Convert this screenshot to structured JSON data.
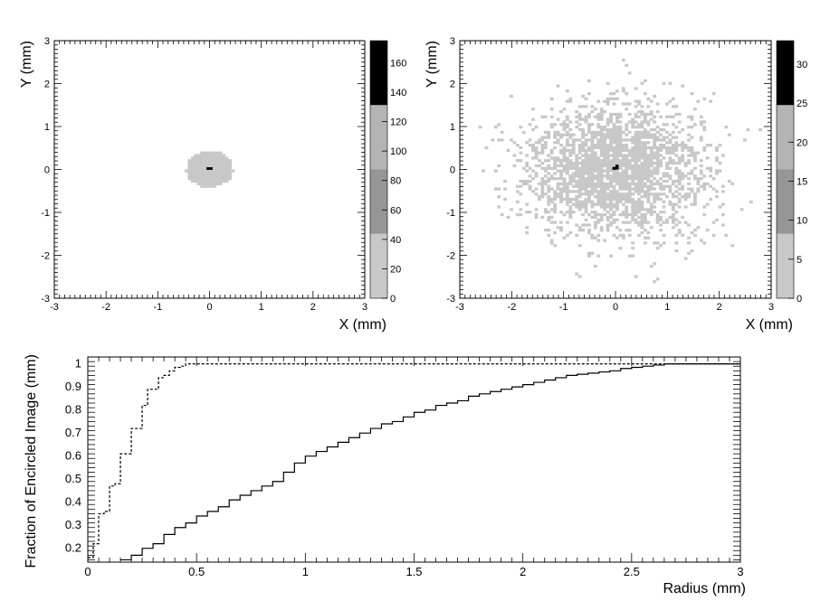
{
  "chart_data": [
    {
      "type": "heatmap",
      "xlabel": "X (mm)",
      "ylabel": "Y (mm)",
      "xlim": [
        -3,
        3
      ],
      "ylim": [
        -3,
        3
      ],
      "x_ticks": [
        "-3",
        "-2",
        "-1",
        "0",
        "1",
        "2",
        "3"
      ],
      "y_ticks": [
        "-3",
        "-2",
        "-1",
        "0",
        "1",
        "2",
        "3"
      ],
      "colorbar": {
        "zlim": [
          0,
          175
        ],
        "ticks": [
          "0",
          "20",
          "40",
          "60",
          "80",
          "100",
          "120",
          "140",
          "160"
        ],
        "levels": [
          {
            "from": 0,
            "to": 43.75,
            "color": "#c8c8c8"
          },
          {
            "from": 43.75,
            "to": 87.5,
            "color": "#969696"
          },
          {
            "from": 87.5,
            "to": 131.25,
            "color": "#b4b4b4"
          },
          {
            "from": 131.25,
            "to": 175,
            "color": "#000000"
          }
        ]
      },
      "distribution": {
        "shape": "compact disc",
        "radius_mm": 0.45,
        "peak_at": [
          0,
          0
        ],
        "peak_value": 175
      }
    },
    {
      "type": "heatmap",
      "xlabel": "X (mm)",
      "ylabel": "Y (mm)",
      "xlim": [
        -3,
        3
      ],
      "ylim": [
        -3,
        3
      ],
      "x_ticks": [
        "-3",
        "-2",
        "-1",
        "0",
        "1",
        "2",
        "3"
      ],
      "y_ticks": [
        "-3",
        "-2",
        "-1",
        "0",
        "1",
        "2",
        "3"
      ],
      "colorbar": {
        "zlim": [
          0,
          33
        ],
        "ticks": [
          "0",
          "5",
          "10",
          "15",
          "20",
          "25",
          "30"
        ],
        "levels": [
          {
            "from": 0,
            "to": 8.25,
            "color": "#c8c8c8"
          },
          {
            "from": 8.25,
            "to": 16.5,
            "color": "#969696"
          },
          {
            "from": 16.5,
            "to": 24.75,
            "color": "#b4b4b4"
          },
          {
            "from": 24.75,
            "to": 33,
            "color": "#000000"
          }
        ]
      },
      "distribution": {
        "shape": "diffuse scatter",
        "radius_mm": 3.0,
        "peak_at": [
          0,
          0
        ],
        "peak_value": 33
      }
    },
    {
      "type": "line",
      "xlabel": "Radius (mm)",
      "ylabel": "Fraction of Encircled Image (mm)",
      "xlim": [
        0,
        3
      ],
      "ylim": [
        0.14,
        1.03
      ],
      "x_ticks": [
        "0",
        "0.5",
        "1",
        "1.5",
        "2",
        "2.5",
        "3"
      ],
      "y_ticks": [
        "0.2",
        "0.3",
        "0.4",
        "0.5",
        "0.6",
        "0.7",
        "0.8",
        "0.9",
        "1"
      ],
      "series": [
        {
          "style": "dashed",
          "x": [
            0.025,
            0.05,
            0.075,
            0.1,
            0.125,
            0.15,
            0.175,
            0.2,
            0.225,
            0.25,
            0.275,
            0.3,
            0.325,
            0.35,
            0.375,
            0.4,
            0.425,
            0.45,
            0.475,
            3.0
          ],
          "y": [
            0.16,
            0.22,
            0.35,
            0.36,
            0.47,
            0.48,
            0.61,
            0.61,
            0.72,
            0.72,
            0.82,
            0.89,
            0.89,
            0.94,
            0.95,
            0.97,
            0.985,
            0.99,
            1.0,
            1.0
          ]
        },
        {
          "style": "solid",
          "x": [
            0.2,
            0.25,
            0.3,
            0.35,
            0.4,
            0.45,
            0.5,
            0.55,
            0.6,
            0.65,
            0.7,
            0.75,
            0.8,
            0.85,
            0.9,
            0.95,
            1.0,
            1.05,
            1.1,
            1.15,
            1.2,
            1.25,
            1.3,
            1.35,
            1.4,
            1.45,
            1.5,
            1.55,
            1.6,
            1.65,
            1.7,
            1.75,
            1.8,
            1.85,
            1.9,
            1.95,
            2.0,
            2.05,
            2.1,
            2.15,
            2.2,
            2.25,
            2.3,
            2.35,
            2.4,
            2.45,
            2.5,
            2.55,
            2.6,
            2.65,
            2.7,
            3.0
          ],
          "y": [
            0.15,
            0.17,
            0.2,
            0.22,
            0.26,
            0.29,
            0.31,
            0.34,
            0.36,
            0.38,
            0.41,
            0.43,
            0.45,
            0.47,
            0.49,
            0.53,
            0.57,
            0.6,
            0.62,
            0.64,
            0.66,
            0.68,
            0.7,
            0.72,
            0.74,
            0.75,
            0.77,
            0.79,
            0.8,
            0.82,
            0.83,
            0.84,
            0.86,
            0.87,
            0.88,
            0.89,
            0.9,
            0.91,
            0.92,
            0.93,
            0.94,
            0.95,
            0.955,
            0.96,
            0.965,
            0.97,
            0.98,
            0.985,
            0.99,
            0.995,
            1.0,
            1.0
          ]
        }
      ]
    }
  ]
}
